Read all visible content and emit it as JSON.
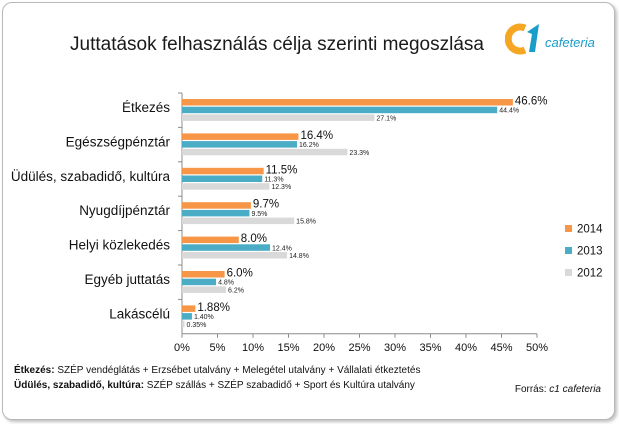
{
  "title": "Juttatások felhasználás célja szerinti megoszlása",
  "logo": {
    "text": "cafeteria",
    "mark": "c1"
  },
  "notes": [
    {
      "bold": "Étkezés:",
      "text": " SZÉP vendéglátás + Erzsébet utalvány + Melegétel utalvány + Vállalati étkeztetés"
    },
    {
      "bold": "Üdülés, szabadidő, kultúra:",
      "text": " SZÉP szállás + SZÉP szabadidő + Sport és Kultúra utalvány"
    }
  ],
  "source": {
    "prefix": "Forrás: ",
    "name": "c1 cafeteria"
  },
  "colors": {
    "2014": "#f79646",
    "2013": "#4bacc6",
    "2012": "#d9d9d9"
  },
  "chart_data": {
    "type": "bar",
    "orientation": "horizontal",
    "categories": [
      "Étkezés",
      "Egészségpénztár",
      "Üdülés, szabadidő, kultúra",
      "Nyugdíjpénztár",
      "Helyi közlekedés",
      "Egyéb juttatás",
      "Lakáscélú"
    ],
    "series": [
      {
        "name": "2014",
        "values": [
          46.6,
          16.4,
          11.5,
          9.7,
          8.0,
          6.0,
          1.88
        ],
        "labels": [
          "46.6%",
          "16.4%",
          "11.5%",
          "9.7%",
          "8.0%",
          "6.0%",
          "1.88%"
        ]
      },
      {
        "name": "2013",
        "values": [
          44.4,
          16.2,
          11.3,
          9.5,
          12.4,
          4.8,
          1.4
        ],
        "labels": [
          "44.4%",
          "16.2%",
          "11.3%",
          "9.5%",
          "12.4%",
          "4.8%",
          "1.40%"
        ]
      },
      {
        "name": "2012",
        "values": [
          27.1,
          23.3,
          12.3,
          15.8,
          14.8,
          6.2,
          0.35
        ],
        "labels": [
          "27.1%",
          "23.3%",
          "12.3%",
          "15.8%",
          "14.8%",
          "6.2%",
          "0.35%"
        ]
      }
    ],
    "xlim": [
      0,
      50
    ],
    "xticks": [
      "0%",
      "5%",
      "10%",
      "15%",
      "20%",
      "25%",
      "30%",
      "35%",
      "40%",
      "45%",
      "50%"
    ],
    "legend": {
      "position": "right",
      "entries": [
        "2014",
        "2013",
        "2012"
      ]
    },
    "grid": false
  }
}
